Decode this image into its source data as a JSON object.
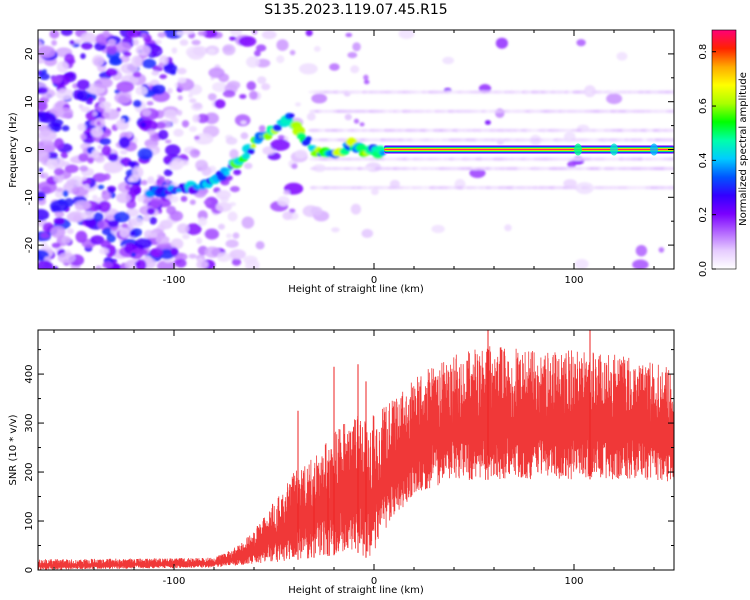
{
  "title": "S135.2023.119.07.45.R15",
  "chart_data": [
    {
      "type": "heatmap",
      "xlabel": "Height of straight line (km)",
      "ylabel": "Frequency (Hz)",
      "xlim": [
        -168,
        150
      ],
      "ylim": [
        -25,
        25
      ],
      "xticks": [
        -100,
        0,
        100
      ],
      "yticks": [
        -20,
        -10,
        0,
        10,
        20
      ],
      "colorbar": {
        "label": "Normalized spectral amplitude",
        "range": [
          0,
          0.88
        ],
        "ticks": [
          0.0,
          0.2,
          0.4,
          0.6,
          0.8
        ],
        "colors": [
          "#ffffff",
          "#e6ccff",
          "#b366ff",
          "#7a00ff",
          "#3300ff",
          "#0055ff",
          "#00ccff",
          "#00ffaa",
          "#00ff00",
          "#aaff00",
          "#ffff00",
          "#ffaa00",
          "#ff2200",
          "#ff0077"
        ]
      },
      "ridge": {
        "x": [
          -112,
          -95,
          -85,
          -78,
          -72,
          -66,
          -60,
          -54,
          -48,
          -42,
          -36,
          -30,
          -24,
          -18,
          -12,
          -6,
          0,
          5,
          150
        ],
        "y": [
          -9,
          -8,
          -7.5,
          -6,
          -4,
          -1.5,
          1,
          3,
          5,
          7,
          3,
          0,
          -1,
          -0.5,
          1,
          -0.5,
          -0.5,
          0,
          0
        ]
      },
      "strong_band": {
        "x_start": 5,
        "x_end": 150,
        "frequency": 0,
        "amplitude": 0.85
      },
      "harmonics": [
        -8,
        -4,
        -2,
        2,
        4,
        8,
        12
      ]
    },
    {
      "type": "line",
      "xlabel": "Height of straight line (km)",
      "ylabel": "SNR (10 * v/v)",
      "xlim": [
        -168,
        150
      ],
      "ylim": [
        0,
        490
      ],
      "xticks": [
        -100,
        0,
        100
      ],
      "yticks": [
        0,
        100,
        200,
        300,
        400
      ],
      "color": "#ee2222",
      "envelope": {
        "x": [
          -168,
          -80,
          -70,
          -60,
          -50,
          -40,
          -30,
          -20,
          -10,
          -2,
          0,
          10,
          20,
          30,
          40,
          60,
          80,
          100,
          120,
          150
        ],
        "lower": [
          0,
          5,
          8,
          12,
          15,
          20,
          25,
          30,
          40,
          20,
          35,
          110,
          150,
          170,
          180,
          185,
          185,
          185,
          185,
          180
        ],
        "upper": [
          22,
          25,
          45,
          80,
          140,
          200,
          230,
          280,
          320,
          300,
          320,
          350,
          390,
          420,
          440,
          460,
          450,
          450,
          440,
          420
        ]
      },
      "spikes": [
        {
          "x": -38,
          "y": 325
        },
        {
          "x": -30,
          "y": 170
        },
        {
          "x": -23,
          "y": 220
        },
        {
          "x": -20,
          "y": 415
        },
        {
          "x": -8,
          "y": 420
        },
        {
          "x": -4,
          "y": 385
        },
        {
          "x": 57,
          "y": 490
        },
        {
          "x": 108,
          "y": 490
        }
      ]
    }
  ]
}
